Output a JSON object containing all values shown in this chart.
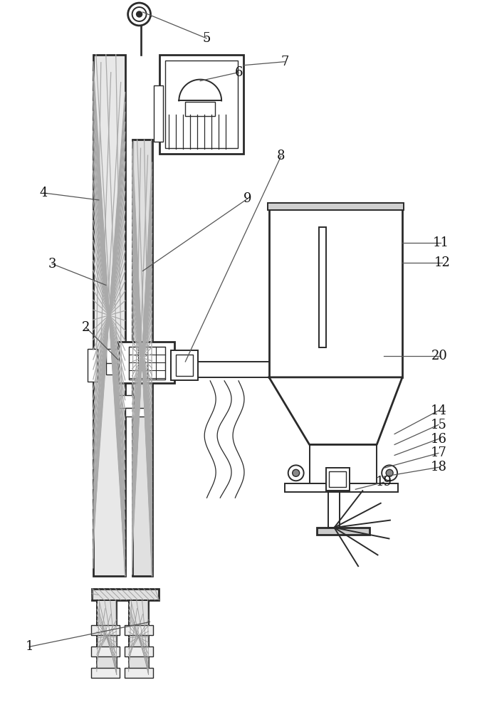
{
  "bg_color": "#ffffff",
  "lc": "#2a2a2a",
  "fig_width": 6.77,
  "fig_height": 10.0,
  "dpi": 100
}
